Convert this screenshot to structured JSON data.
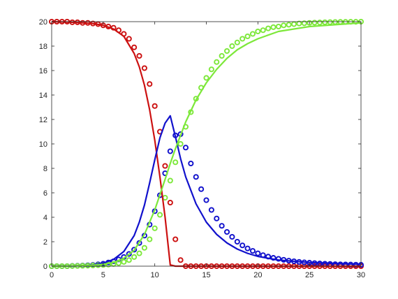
{
  "chart_data": {
    "type": "line",
    "title": "",
    "xlabel": "",
    "ylabel": "",
    "xlim": [
      0,
      30
    ],
    "ylim": [
      0,
      20
    ],
    "xticks": [
      "0",
      "5",
      "10",
      "15",
      "20",
      "25",
      "30"
    ],
    "yticks": [
      "0",
      "2",
      "4",
      "6",
      "8",
      "10",
      "12",
      "14",
      "16",
      "18",
      "20"
    ],
    "grid": false,
    "legend": "none",
    "series": [
      {
        "style": "line",
        "color": "#cc1111",
        "x": [
          0,
          2,
          4,
          5,
          6,
          7,
          8,
          8.5,
          9,
          9.5,
          10,
          10.5,
          11,
          11.5,
          12,
          13,
          15,
          20,
          25,
          30
        ],
        "y": [
          20,
          19.95,
          19.85,
          19.7,
          19.4,
          18.8,
          17.4,
          16.3,
          14.8,
          12.8,
          10.3,
          7.3,
          4,
          0.1,
          0,
          0,
          0,
          0,
          0,
          0
        ]
      },
      {
        "style": "line",
        "color": "#1111cc",
        "x": [
          0,
          2,
          3,
          4,
          5,
          6,
          7,
          8,
          8.5,
          9,
          9.5,
          10,
          10.5,
          11,
          11.5,
          12,
          12.5,
          13,
          14,
          15,
          16,
          17,
          18,
          19,
          20,
          22,
          25,
          30
        ],
        "y": [
          0,
          0.02,
          0.05,
          0.1,
          0.25,
          0.55,
          1.2,
          2.5,
          3.6,
          5,
          6.8,
          8.7,
          10.5,
          11.7,
          12.3,
          10.6,
          8.8,
          7.3,
          5.1,
          3.6,
          2.6,
          1.9,
          1.4,
          1.05,
          0.8,
          0.5,
          0.3,
          0.15
        ]
      },
      {
        "style": "line",
        "color": "#7de83a",
        "x": [
          0,
          2,
          4,
          5,
          6,
          7,
          8,
          9,
          10,
          11,
          11.5,
          12,
          13,
          14,
          15,
          16,
          17,
          18,
          19,
          20,
          22,
          25,
          30
        ],
        "y": [
          0,
          0.02,
          0.08,
          0.15,
          0.3,
          0.65,
          1.3,
          2.6,
          4.6,
          7.1,
          8.4,
          9.6,
          11.8,
          13.6,
          15,
          16.1,
          17,
          17.7,
          18.2,
          18.6,
          19.2,
          19.6,
          19.9
        ]
      },
      {
        "style": "markers",
        "color": "#cc1111",
        "x": [
          0,
          0.5,
          1,
          1.5,
          2,
          2.5,
          3,
          3.5,
          4,
          4.5,
          5,
          5.5,
          6,
          6.5,
          7,
          7.5,
          8,
          8.5,
          9,
          9.5,
          10,
          10.5,
          11,
          11.5,
          12,
          12.5,
          13,
          13.5,
          14,
          14.5,
          15,
          15.5,
          16,
          16.5,
          17,
          17.5,
          18,
          18.5,
          19,
          19.5,
          20,
          20.5,
          21,
          21.5,
          22,
          22.5,
          23,
          23.5,
          24,
          24.5,
          25,
          25.5,
          26,
          26.5,
          27,
          27.5,
          28,
          28.5,
          29,
          29.5,
          30
        ],
        "y": [
          20,
          20,
          20,
          20,
          19.95,
          19.95,
          19.9,
          19.9,
          19.85,
          19.8,
          19.7,
          19.6,
          19.5,
          19.3,
          19.0,
          18.6,
          17.9,
          17.2,
          16.2,
          14.9,
          13.1,
          11.0,
          8.2,
          5.2,
          2.2,
          0.5,
          0,
          0,
          0,
          0,
          0,
          0,
          0,
          0,
          0,
          0,
          0,
          0,
          0,
          0,
          0,
          0,
          0,
          0,
          0,
          0,
          0,
          0,
          0,
          0,
          0,
          0,
          0,
          0,
          0,
          0,
          0,
          0,
          0,
          0,
          0
        ]
      },
      {
        "style": "markers",
        "color": "#1111cc",
        "x": [
          0,
          0.5,
          1,
          1.5,
          2,
          2.5,
          3,
          3.5,
          4,
          4.5,
          5,
          5.5,
          6,
          6.5,
          7,
          7.5,
          8,
          8.5,
          9,
          9.5,
          10,
          10.5,
          11,
          11.5,
          12,
          12.5,
          13,
          13.5,
          14,
          14.5,
          15,
          15.5,
          16,
          16.5,
          17,
          17.5,
          18,
          18.5,
          19,
          19.5,
          20,
          20.5,
          21,
          21.5,
          22,
          22.5,
          23,
          23.5,
          24,
          24.5,
          25,
          25.5,
          26,
          26.5,
          27,
          27.5,
          28,
          28.5,
          29,
          29.5,
          30
        ],
        "y": [
          0,
          0,
          0,
          0,
          0.02,
          0.03,
          0.05,
          0.07,
          0.1,
          0.15,
          0.2,
          0.3,
          0.4,
          0.55,
          0.75,
          1.0,
          1.35,
          1.9,
          2.5,
          3.4,
          4.5,
          5.8,
          7.6,
          9.4,
          10.7,
          10.8,
          9.7,
          8.4,
          7.3,
          6.3,
          5.4,
          4.6,
          3.9,
          3.3,
          2.8,
          2.4,
          2.0,
          1.7,
          1.45,
          1.25,
          1.05,
          0.9,
          0.78,
          0.68,
          0.6,
          0.52,
          0.45,
          0.4,
          0.35,
          0.31,
          0.28,
          0.25,
          0.22,
          0.2,
          0.18,
          0.16,
          0.15,
          0.14,
          0.13,
          0.12,
          0.11
        ]
      },
      {
        "style": "markers",
        "color": "#7de83a",
        "x": [
          0,
          0.5,
          1,
          1.5,
          2,
          2.5,
          3,
          3.5,
          4,
          4.5,
          5,
          5.5,
          6,
          6.5,
          7,
          7.5,
          8,
          8.5,
          9,
          9.5,
          10,
          10.5,
          11,
          11.5,
          12,
          12.5,
          13,
          13.5,
          14,
          14.5,
          15,
          15.5,
          16,
          16.5,
          17,
          17.5,
          18,
          18.5,
          19,
          19.5,
          20,
          20.5,
          21,
          21.5,
          22,
          22.5,
          23,
          23.5,
          24,
          24.5,
          25,
          25.5,
          26,
          26.5,
          27,
          27.5,
          28,
          28.5,
          29,
          29.5,
          30
        ],
        "y": [
          0,
          0,
          0,
          0,
          0.01,
          0.02,
          0.03,
          0.04,
          0.06,
          0.08,
          0.1,
          0.13,
          0.18,
          0.25,
          0.35,
          0.5,
          0.75,
          1.05,
          1.5,
          2.2,
          3.1,
          4.2,
          5.6,
          7.0,
          8.5,
          10.0,
          11.4,
          12.6,
          13.7,
          14.6,
          15.4,
          16.1,
          16.7,
          17.2,
          17.6,
          18.0,
          18.3,
          18.6,
          18.8,
          19.0,
          19.2,
          19.3,
          19.45,
          19.55,
          19.6,
          19.7,
          19.75,
          19.8,
          19.85,
          19.87,
          19.9,
          19.92,
          19.93,
          19.95,
          19.96,
          19.97,
          19.98,
          19.98,
          19.99,
          19.99,
          20
        ]
      }
    ]
  }
}
